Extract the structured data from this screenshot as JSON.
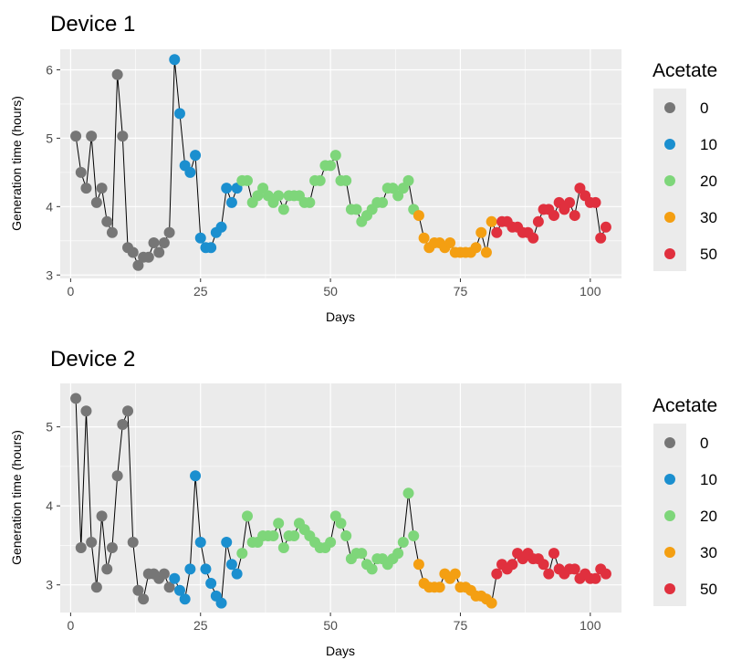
{
  "legend": {
    "title": "Acetate",
    "entries": [
      {
        "label": "0",
        "color": "#767676"
      },
      {
        "label": "10",
        "color": "#1b8fcf"
      },
      {
        "label": "20",
        "color": "#7ed67a"
      },
      {
        "label": "30",
        "color": "#f49f12"
      },
      {
        "label": "50",
        "color": "#e0303e"
      }
    ]
  },
  "chart_data": [
    {
      "type": "scatter",
      "title": "Device 1",
      "xlabel": "Days",
      "ylabel": "Generation time (hours)",
      "xlim": [
        -2,
        106
      ],
      "ylim": [
        2.95,
        6.3
      ],
      "xticks": [
        0,
        25,
        50,
        75,
        100
      ],
      "yticks": [
        3,
        4,
        5,
        6
      ],
      "grid": true,
      "connecting_line": true,
      "legend_position": "right",
      "series": [
        {
          "name": "0",
          "color": "#767676",
          "x": [
            1,
            2,
            3,
            4,
            5,
            6,
            7,
            8,
            9,
            10,
            11,
            12,
            13,
            14,
            15,
            16,
            17,
            18,
            19
          ],
          "y": [
            5.03,
            4.5,
            4.27,
            5.03,
            4.06,
            4.27,
            3.78,
            3.62,
            5.93,
            5.03,
            3.4,
            3.33,
            3.14,
            3.26,
            3.26,
            3.47,
            3.33,
            3.47,
            3.62
          ]
        },
        {
          "name": "10",
          "color": "#1b8fcf",
          "x": [
            20,
            21,
            22,
            23,
            24,
            25,
            26,
            27,
            28,
            29,
            30,
            31,
            32
          ],
          "y": [
            6.15,
            5.36,
            4.6,
            4.5,
            4.75,
            3.54,
            3.4,
            3.4,
            3.62,
            3.7,
            4.27,
            4.06,
            4.27
          ]
        },
        {
          "name": "20",
          "color": "#7ed67a",
          "x": [
            33,
            34,
            35,
            36,
            37,
            38,
            39,
            40,
            41,
            42,
            43,
            44,
            45,
            46,
            47,
            48,
            49,
            50,
            51,
            52,
            53,
            54,
            55,
            56,
            57,
            58,
            59,
            60,
            61,
            62,
            63,
            64,
            65,
            66
          ],
          "y": [
            4.38,
            4.38,
            4.06,
            4.16,
            4.27,
            4.16,
            4.06,
            4.16,
            3.96,
            4.16,
            4.16,
            4.16,
            4.06,
            4.06,
            4.38,
            4.38,
            4.6,
            4.6,
            4.75,
            4.38,
            4.38,
            3.96,
            3.96,
            3.78,
            3.87,
            3.96,
            4.06,
            4.06,
            4.27,
            4.27,
            4.16,
            4.27,
            4.38,
            3.96
          ]
        },
        {
          "name": "30",
          "color": "#f49f12",
          "x": [
            67,
            68,
            69,
            70,
            71,
            72,
            73,
            74,
            75,
            76,
            77,
            78,
            79,
            80,
            81
          ],
          "y": [
            3.87,
            3.54,
            3.4,
            3.47,
            3.47,
            3.4,
            3.47,
            3.33,
            3.33,
            3.33,
            3.33,
            3.4,
            3.62,
            3.33,
            3.78
          ]
        },
        {
          "name": "50",
          "color": "#e0303e",
          "x": [
            82,
            83,
            84,
            85,
            86,
            87,
            88,
            89,
            90,
            91,
            92,
            93,
            94,
            95,
            96,
            97,
            98,
            99,
            100,
            101,
            102,
            103
          ],
          "y": [
            3.62,
            3.78,
            3.78,
            3.7,
            3.7,
            3.62,
            3.62,
            3.54,
            3.78,
            3.96,
            3.96,
            3.87,
            4.06,
            3.96,
            4.06,
            3.87,
            4.27,
            4.16,
            4.06,
            4.06,
            3.54,
            3.7
          ]
        }
      ]
    },
    {
      "type": "scatter",
      "title": "Device 2",
      "xlabel": "Days",
      "ylabel": "Generation time (hours)",
      "xlim": [
        -2,
        106
      ],
      "ylim": [
        2.65,
        5.55
      ],
      "xticks": [
        0,
        25,
        50,
        75,
        100
      ],
      "yticks": [
        3,
        4,
        5
      ],
      "grid": true,
      "connecting_line": true,
      "legend_position": "right",
      "series": [
        {
          "name": "0",
          "color": "#767676",
          "x": [
            1,
            2,
            3,
            4,
            5,
            6,
            7,
            8,
            9,
            10,
            11,
            12,
            13,
            14,
            15,
            16,
            17,
            18,
            19
          ],
          "y": [
            5.36,
            3.47,
            5.2,
            3.54,
            2.97,
            3.87,
            3.2,
            3.47,
            4.38,
            5.03,
            5.2,
            3.54,
            2.93,
            2.82,
            3.14,
            3.14,
            3.08,
            3.14,
            2.97
          ]
        },
        {
          "name": "10",
          "color": "#1b8fcf",
          "x": [
            20,
            21,
            22,
            23,
            24,
            25,
            26,
            27,
            28,
            29,
            30,
            31,
            32
          ],
          "y": [
            3.08,
            2.93,
            2.82,
            3.2,
            4.38,
            3.54,
            3.2,
            3.02,
            2.86,
            2.77,
            3.54,
            3.26,
            3.14
          ]
        },
        {
          "name": "20",
          "color": "#7ed67a",
          "x": [
            33,
            34,
            35,
            36,
            37,
            38,
            39,
            40,
            41,
            42,
            43,
            44,
            45,
            46,
            47,
            48,
            49,
            50,
            51,
            52,
            53,
            54,
            55,
            56,
            57,
            58,
            59,
            60,
            61,
            62,
            63,
            64,
            65,
            66
          ],
          "y": [
            3.4,
            3.87,
            3.54,
            3.54,
            3.62,
            3.62,
            3.62,
            3.78,
            3.47,
            3.62,
            3.62,
            3.78,
            3.7,
            3.62,
            3.54,
            3.47,
            3.47,
            3.54,
            3.87,
            3.78,
            3.62,
            3.33,
            3.4,
            3.4,
            3.26,
            3.2,
            3.33,
            3.33,
            3.26,
            3.33,
            3.4,
            3.54,
            4.16,
            3.62
          ]
        },
        {
          "name": "30",
          "color": "#f49f12",
          "x": [
            67,
            68,
            69,
            70,
            71,
            72,
            73,
            74,
            75,
            76,
            77,
            78,
            79,
            80,
            81
          ],
          "y": [
            3.26,
            3.02,
            2.97,
            2.97,
            2.97,
            3.14,
            3.08,
            3.14,
            2.97,
            2.97,
            2.93,
            2.86,
            2.86,
            2.82,
            2.77
          ]
        },
        {
          "name": "50",
          "color": "#e0303e",
          "x": [
            82,
            83,
            84,
            85,
            86,
            87,
            88,
            89,
            90,
            91,
            92,
            93,
            94,
            95,
            96,
            97,
            98,
            99,
            100,
            101,
            102,
            103
          ],
          "y": [
            3.14,
            3.26,
            3.2,
            3.26,
            3.4,
            3.33,
            3.4,
            3.33,
            3.33,
            3.26,
            3.14,
            3.4,
            3.2,
            3.14,
            3.2,
            3.2,
            3.08,
            3.14,
            3.08,
            3.08,
            3.2,
            3.14
          ]
        }
      ]
    }
  ]
}
